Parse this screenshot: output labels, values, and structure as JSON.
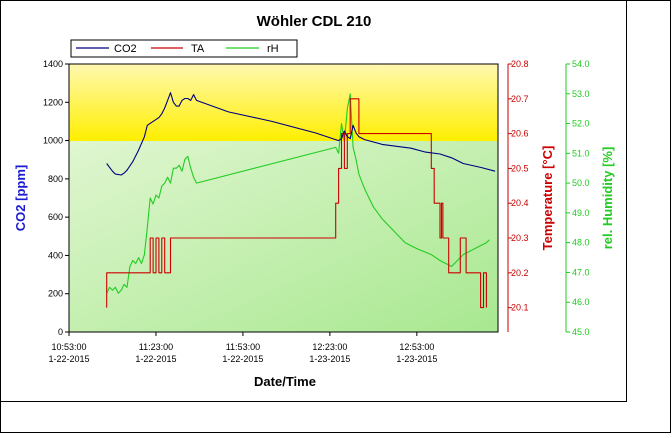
{
  "chart_data": {
    "type": "line",
    "title": "Wöhler CDL 210",
    "xlabel": "Date/Time",
    "x_ticks": [
      {
        "time": "10:53:00",
        "date": "1-22-2015"
      },
      {
        "time": "11:23:00",
        "date": "1-22-2015"
      },
      {
        "time": "11:53:00",
        "date": "1-22-2015"
      },
      {
        "time": "12:23:00",
        "date": "1-23-2015"
      },
      {
        "time": "12:53:00",
        "date": "1-23-2015"
      }
    ],
    "xlim_minutes_from_first_tick": [
      0,
      148
    ],
    "grid": false,
    "legend_position": "top-left",
    "zones": [
      {
        "from": 1000,
        "to": 1400,
        "color": "#fff200"
      },
      {
        "from": 0,
        "to": 1000,
        "color": "#c8f0b4"
      }
    ],
    "axes": {
      "co2": {
        "label": "CO2 [ppm]",
        "min": 0,
        "max": 1400,
        "ticks": [
          "0",
          "200",
          "400",
          "600",
          "800",
          "1000",
          "1200",
          "1400"
        ],
        "color": "#1010a0"
      },
      "temp": {
        "label": "Temperature [°C]",
        "min": 20.03,
        "max": 20.8,
        "ticks": [
          "20.1",
          "20.2",
          "20.3",
          "20.4",
          "20.5",
          "20.6",
          "20.7",
          "20.8"
        ],
        "color": "#cc0000"
      },
      "rh": {
        "label": "rel. Humidity [%]",
        "min": 45.0,
        "max": 54.0,
        "ticks": [
          "45.0",
          "46.0",
          "47.0",
          "48.0",
          "49.0",
          "50.0",
          "51.0",
          "52.0",
          "53.0",
          "54.0"
        ],
        "color": "#22cc22"
      }
    },
    "series": [
      {
        "name": "CO2",
        "axis": "co2",
        "color": "#000080",
        "points": [
          [
            13,
            880
          ],
          [
            14,
            860
          ],
          [
            15,
            840
          ],
          [
            16,
            825
          ],
          [
            18,
            820
          ],
          [
            19,
            830
          ],
          [
            20,
            845
          ],
          [
            22,
            890
          ],
          [
            24,
            950
          ],
          [
            26,
            1020
          ],
          [
            27,
            1080
          ],
          [
            29,
            1100
          ],
          [
            31,
            1120
          ],
          [
            32,
            1140
          ],
          [
            33,
            1170
          ],
          [
            34,
            1210
          ],
          [
            35,
            1250
          ],
          [
            36,
            1200
          ],
          [
            37,
            1180
          ],
          [
            38,
            1180
          ],
          [
            39,
            1210
          ],
          [
            40,
            1220
          ],
          [
            41,
            1220
          ],
          [
            42,
            1210
          ],
          [
            43,
            1240
          ],
          [
            44,
            1210
          ],
          [
            55,
            1150
          ],
          [
            70,
            1100
          ],
          [
            85,
            1040
          ],
          [
            93,
            1000
          ],
          [
            94,
            1010
          ],
          [
            95,
            1050
          ],
          [
            96,
            1020
          ],
          [
            97,
            1010
          ],
          [
            98,
            1080
          ],
          [
            99,
            1040
          ],
          [
            100,
            1020
          ],
          [
            102,
            1005
          ],
          [
            108,
            980
          ],
          [
            118,
            960
          ],
          [
            123,
            940
          ],
          [
            128,
            930
          ],
          [
            132,
            910
          ],
          [
            136,
            880
          ],
          [
            142,
            860
          ],
          [
            147,
            840
          ]
        ]
      },
      {
        "name": "TA",
        "axis": "temp",
        "color": "#cc0000",
        "step": true,
        "points": [
          [
            13,
            20.1
          ],
          [
            13,
            20.2
          ],
          [
            20,
            20.2
          ],
          [
            20,
            20.2
          ],
          [
            28,
            20.2
          ],
          [
            28,
            20.3
          ],
          [
            29,
            20.3
          ],
          [
            29,
            20.2
          ],
          [
            30,
            20.2
          ],
          [
            30,
            20.3
          ],
          [
            31,
            20.3
          ],
          [
            31,
            20.2
          ],
          [
            32,
            20.2
          ],
          [
            32,
            20.3
          ],
          [
            33,
            20.3
          ],
          [
            33,
            20.2
          ],
          [
            35,
            20.2
          ],
          [
            35,
            20.3
          ],
          [
            92,
            20.3
          ],
          [
            92,
            20.4
          ],
          [
            93,
            20.4
          ],
          [
            93,
            20.5
          ],
          [
            94,
            20.5
          ],
          [
            94,
            20.6
          ],
          [
            95,
            20.6
          ],
          [
            95,
            20.5
          ],
          [
            96,
            20.5
          ],
          [
            96,
            20.6
          ],
          [
            97,
            20.6
          ],
          [
            97,
            20.7
          ],
          [
            100,
            20.7
          ],
          [
            100,
            20.6
          ],
          [
            125,
            20.6
          ],
          [
            125,
            20.5
          ],
          [
            126,
            20.5
          ],
          [
            126,
            20.4
          ],
          [
            128,
            20.4
          ],
          [
            128,
            20.3
          ],
          [
            128.5,
            20.3
          ],
          [
            128.5,
            20.4
          ],
          [
            129,
            20.4
          ],
          [
            129,
            20.3
          ],
          [
            131,
            20.3
          ],
          [
            131,
            20.2
          ],
          [
            135,
            20.2
          ],
          [
            135,
            20.3
          ],
          [
            137,
            20.3
          ],
          [
            137,
            20.2
          ],
          [
            142,
            20.2
          ],
          [
            142,
            20.1
          ],
          [
            143,
            20.1
          ],
          [
            143,
            20.2
          ],
          [
            144,
            20.2
          ],
          [
            144,
            20.1
          ]
        ]
      },
      {
        "name": "rH",
        "axis": "rh",
        "color": "#22cc22",
        "points": [
          [
            13,
            46.3
          ],
          [
            14,
            46.5
          ],
          [
            15,
            46.4
          ],
          [
            16,
            46.5
          ],
          [
            17,
            46.3
          ],
          [
            18,
            46.4
          ],
          [
            19,
            46.6
          ],
          [
            20,
            46.5
          ],
          [
            21,
            47.2
          ],
          [
            22,
            47.4
          ],
          [
            23,
            47.3
          ],
          [
            24,
            47.5
          ],
          [
            25,
            47.3
          ],
          [
            26,
            47.6
          ],
          [
            27,
            48.5
          ],
          [
            28,
            49.5
          ],
          [
            29,
            49.3
          ],
          [
            30,
            49.6
          ],
          [
            31,
            49.5
          ],
          [
            32,
            49.9
          ],
          [
            33,
            50.0
          ],
          [
            34,
            50.2
          ],
          [
            35,
            50.0
          ],
          [
            36,
            50.5
          ],
          [
            37,
            50.5
          ],
          [
            38,
            50.6
          ],
          [
            39,
            50.4
          ],
          [
            40,
            50.8
          ],
          [
            41,
            50.9
          ],
          [
            42,
            50.5
          ],
          [
            43,
            50.2
          ],
          [
            44,
            50.0
          ],
          [
            92,
            51.2
          ],
          [
            93,
            51.0
          ],
          [
            94,
            52.0
          ],
          [
            95,
            51.4
          ],
          [
            96,
            52.5
          ],
          [
            97,
            53.0
          ],
          [
            98,
            51.2
          ],
          [
            99,
            50.8
          ],
          [
            100,
            50.3
          ],
          [
            102,
            49.8
          ],
          [
            105,
            49.2
          ],
          [
            108,
            48.8
          ],
          [
            112,
            48.4
          ],
          [
            116,
            48.0
          ],
          [
            120,
            47.8
          ],
          [
            125,
            47.6
          ],
          [
            128,
            47.4
          ],
          [
            130,
            47.3
          ],
          [
            132,
            47.2
          ],
          [
            134,
            47.4
          ],
          [
            136,
            47.6
          ],
          [
            138,
            47.7
          ],
          [
            140,
            47.8
          ],
          [
            142,
            47.9
          ],
          [
            144,
            48.0
          ],
          [
            145,
            48.1
          ]
        ]
      }
    ]
  }
}
